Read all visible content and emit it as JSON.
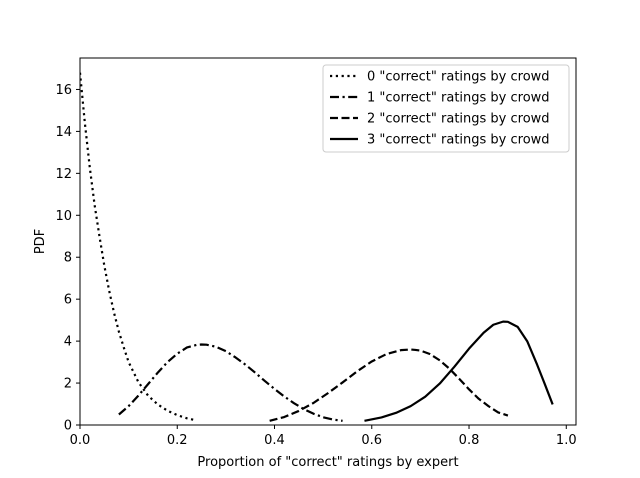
{
  "chart_data": {
    "type": "line",
    "title": "",
    "xlabel": "Proportion of \"correct\" ratings by expert",
    "ylabel": "PDF",
    "xlim": [
      0,
      1.02
    ],
    "ylim": [
      0,
      17.5
    ],
    "xticks": [
      0.0,
      0.2,
      0.4,
      0.6,
      0.8,
      1.0
    ],
    "xtick_labels": [
      "0.0",
      "0.2",
      "0.4",
      "0.6",
      "0.8",
      "1.0"
    ],
    "yticks": [
      0,
      2,
      4,
      6,
      8,
      10,
      12,
      14,
      16
    ],
    "ytick_labels": [
      "0",
      "2",
      "4",
      "6",
      "8",
      "10",
      "12",
      "14",
      "16"
    ],
    "grid": false,
    "legend_position": "top-right",
    "series": [
      {
        "name": "0 \"correct\" ratings by crowd",
        "style": "dotted",
        "x": [
          0.0,
          0.01,
          0.02,
          0.03,
          0.04,
          0.05,
          0.06,
          0.07,
          0.08,
          0.09,
          0.1,
          0.12,
          0.14,
          0.16,
          0.18,
          0.2,
          0.22,
          0.235
        ],
        "y": [
          16.8,
          14.4,
          12.3,
          10.5,
          9.0,
          7.6,
          6.4,
          5.35,
          4.45,
          3.7,
          3.0,
          2.05,
          1.4,
          0.98,
          0.68,
          0.47,
          0.32,
          0.24
        ]
      },
      {
        "name": "1 \"correct\" ratings by crowd",
        "style": "dashdot",
        "x": [
          0.08,
          0.1,
          0.12,
          0.14,
          0.16,
          0.18,
          0.2,
          0.22,
          0.24,
          0.25,
          0.26,
          0.28,
          0.3,
          0.32,
          0.34,
          0.36,
          0.38,
          0.4,
          0.42,
          0.44,
          0.46,
          0.48,
          0.5,
          0.52,
          0.54
        ],
        "y": [
          0.5,
          0.9,
          1.4,
          1.95,
          2.5,
          3.0,
          3.4,
          3.7,
          3.82,
          3.84,
          3.83,
          3.73,
          3.52,
          3.22,
          2.88,
          2.5,
          2.1,
          1.72,
          1.36,
          1.04,
          0.76,
          0.54,
          0.37,
          0.26,
          0.2
        ]
      },
      {
        "name": "2 \"correct\" ratings by crowd",
        "style": "dashed",
        "x": [
          0.39,
          0.42,
          0.45,
          0.48,
          0.51,
          0.54,
          0.57,
          0.6,
          0.63,
          0.66,
          0.68,
          0.69,
          0.7,
          0.72,
          0.74,
          0.76,
          0.78,
          0.8,
          0.82,
          0.84,
          0.86,
          0.88
        ],
        "y": [
          0.2,
          0.38,
          0.67,
          1.05,
          1.52,
          2.03,
          2.56,
          3.03,
          3.38,
          3.57,
          3.6,
          3.58,
          3.55,
          3.38,
          3.08,
          2.68,
          2.2,
          1.7,
          1.25,
          0.9,
          0.6,
          0.45
        ]
      },
      {
        "name": "3 \"correct\" ratings by crowd",
        "style": "solid",
        "x": [
          0.585,
          0.62,
          0.65,
          0.68,
          0.71,
          0.74,
          0.77,
          0.8,
          0.83,
          0.85,
          0.87,
          0.88,
          0.9,
          0.92,
          0.94,
          0.955,
          0.972
        ],
        "y": [
          0.2,
          0.36,
          0.58,
          0.9,
          1.35,
          1.98,
          2.78,
          3.64,
          4.4,
          4.78,
          4.93,
          4.92,
          4.68,
          3.98,
          2.88,
          2.0,
          0.98
        ]
      }
    ]
  }
}
